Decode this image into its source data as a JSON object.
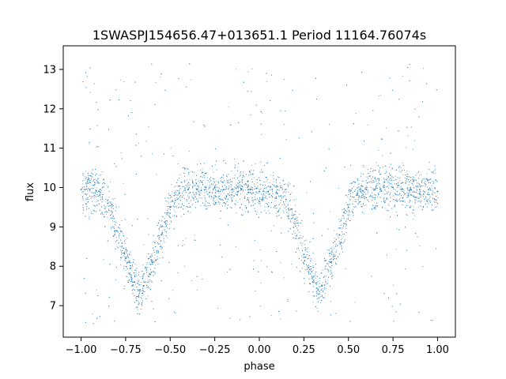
{
  "chart_data": {
    "type": "scatter",
    "title": "1SWASPJ154656.47+013651.1 Period 11164.76074s",
    "xlabel": "phase",
    "ylabel": "flux",
    "xlim": [
      -1.1,
      1.1
    ],
    "ylim": [
      6.2,
      13.6
    ],
    "xticks": [
      -1.0,
      -0.75,
      -0.5,
      -0.25,
      0.0,
      0.25,
      0.5,
      0.75,
      1.0
    ],
    "xtick_labels": [
      "−1.00",
      "−0.75",
      "−0.50",
      "−0.25",
      "0.00",
      "0.25",
      "0.50",
      "0.75",
      "1.00"
    ],
    "yticks": [
      7,
      8,
      9,
      10,
      11,
      12,
      13
    ],
    "ytick_labels": [
      "7",
      "8",
      "9",
      "10",
      "11",
      "12",
      "13"
    ],
    "grid": false,
    "marker_color": "#1f77b4",
    "series": [
      {
        "x": [
          -1.0,
          -0.95,
          -0.9,
          -0.85,
          -0.8,
          -0.75,
          -0.7,
          -0.67,
          -0.65,
          -0.6,
          -0.55,
          -0.5,
          -0.45,
          -0.4,
          -0.35,
          -0.3,
          -0.25,
          -0.2,
          -0.15,
          -0.1,
          -0.05,
          0.0,
          0.05,
          0.1,
          0.15,
          0.2,
          0.25,
          0.3,
          0.33,
          0.35,
          0.4,
          0.45,
          0.5,
          0.55,
          0.6,
          0.65,
          0.7,
          0.75,
          0.8,
          0.85,
          0.9,
          0.95,
          1.0
        ],
        "y": [
          9.95,
          9.95,
          9.9,
          9.6,
          8.9,
          8.2,
          7.6,
          7.4,
          7.5,
          8.1,
          8.8,
          9.5,
          9.85,
          9.95,
          9.95,
          10.0,
          10.0,
          9.95,
          9.95,
          9.95,
          9.95,
          9.9,
          9.9,
          9.85,
          9.7,
          9.2,
          8.3,
          7.6,
          7.4,
          7.5,
          8.1,
          8.8,
          9.5,
          9.85,
          9.95,
          9.95,
          10.0,
          10.0,
          9.95,
          9.95,
          9.95,
          9.95,
          9.9
        ]
      }
    ]
  }
}
